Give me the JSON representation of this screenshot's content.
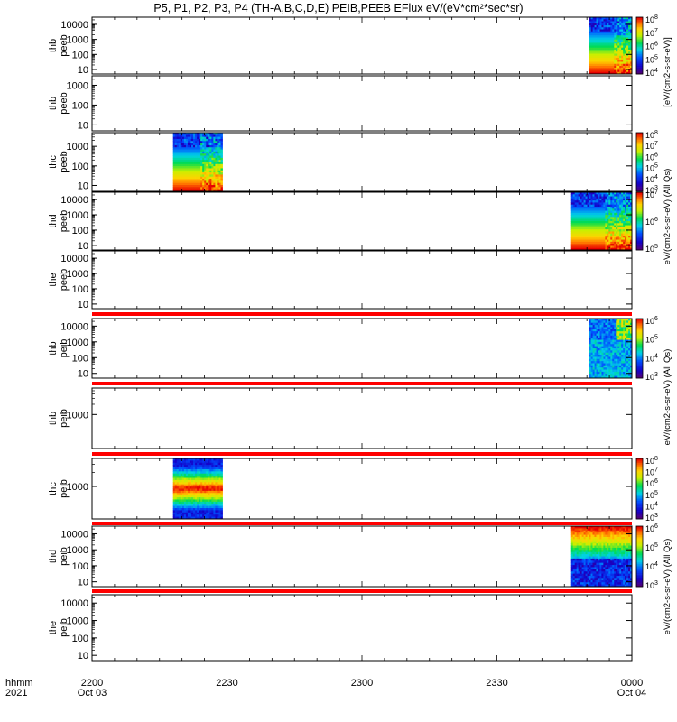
{
  "title": "P5, P1, P2, P3, P4 (TH-A,B,C,D,E) PEIB,PEEB EFlux eV/(eV*cm²*sec*sr)",
  "colors": {
    "band_red": "#ff0000",
    "axis": "#000000"
  },
  "chart_data": {
    "type": "heatmap",
    "x_axis": {
      "corner_label_1": "hhmm",
      "corner_label_2": "2021",
      "ticks": [
        {
          "label": "2200",
          "date": "Oct 03",
          "minutes": 0
        },
        {
          "label": "2230",
          "minutes": 30
        },
        {
          "label": "2300",
          "minutes": 60
        },
        {
          "label": "2330",
          "minutes": 90
        },
        {
          "label": "0000",
          "date": "Oct 04",
          "minutes": 120
        }
      ],
      "range": [
        0,
        120
      ],
      "minor_step_minutes": 5
    },
    "panels": [
      {
        "id": "thb_peeb",
        "labels": [
          "thb",
          "peeb"
        ],
        "ylim": [
          5,
          30000
        ],
        "yscale": "log",
        "yticks": [
          {
            "v": 10,
            "t": "10"
          },
          {
            "v": 100,
            "t": "100"
          },
          {
            "v": 1000,
            "t": "1000"
          },
          {
            "v": 10000,
            "t": "10000"
          }
        ],
        "data_blocks": [
          {
            "start": 110.5,
            "end": 120,
            "kind": "peeb_full"
          }
        ],
        "colorbar": {
          "exponents": [
            4,
            5,
            6,
            7,
            8
          ],
          "units": "eV/(cm2-s-sr-eV)"
        }
      },
      {
        "id": "thb_peeb_2",
        "labels": [
          "thb",
          "peeb"
        ],
        "ylim": [
          5,
          3000
        ],
        "yscale": "log",
        "yticks": [
          {
            "v": 10,
            "t": "10"
          },
          {
            "v": 100,
            "t": "100"
          },
          {
            "v": 1000,
            "t": "1000"
          }
        ],
        "data_blocks": []
      },
      {
        "id": "thc_peeb",
        "labels": [
          "thc",
          "peeb"
        ],
        "ylim": [
          5,
          5000
        ],
        "yscale": "log",
        "yticks": [
          {
            "v": 10,
            "t": "10"
          },
          {
            "v": 100,
            "t": "100"
          },
          {
            "v": 1000,
            "t": "1000"
          }
        ],
        "data_blocks": [
          {
            "start": 18,
            "end": 29,
            "kind": "peeb_full"
          }
        ],
        "colorbar": {
          "exponents": [
            3,
            4,
            5,
            6,
            7,
            8
          ],
          "units": "eV/(cm2-s-sr-eV)"
        }
      },
      {
        "id": "thd_peeb",
        "labels": [
          "thd",
          "peeb"
        ],
        "ylim": [
          5,
          30000
        ],
        "yscale": "log",
        "yticks": [
          {
            "v": 10,
            "t": "10"
          },
          {
            "v": 100,
            "t": "100"
          },
          {
            "v": 1000,
            "t": "1000"
          },
          {
            "v": 10000,
            "t": "10000"
          }
        ],
        "data_blocks": [
          {
            "start": 106.5,
            "end": 120,
            "kind": "peeb_full"
          }
        ],
        "colorbar": {
          "exponents": [
            5,
            6,
            7
          ],
          "units": "eV/(cm2-s-sr-eV)"
        }
      },
      {
        "id": "the_peeb",
        "labels": [
          "the",
          "peeb"
        ],
        "ylim": [
          5,
          30000
        ],
        "yscale": "log",
        "yticks": [
          {
            "v": 10,
            "t": "10"
          },
          {
            "v": 100,
            "t": "100"
          },
          {
            "v": 1000,
            "t": "1000"
          },
          {
            "v": 10000,
            "t": "10000"
          }
        ],
        "data_blocks": []
      },
      {
        "id": "thb_peib",
        "labels": [
          "thb",
          "peib"
        ],
        "ylim": [
          5,
          30000
        ],
        "yscale": "log",
        "yticks": [
          {
            "v": 10,
            "t": "10"
          },
          {
            "v": 100,
            "t": "100"
          },
          {
            "v": 1000,
            "t": "1000"
          },
          {
            "v": 10000,
            "t": "10000"
          }
        ],
        "data_blocks": [
          {
            "start": 110.5,
            "end": 120,
            "kind": "peib_blue"
          }
        ],
        "colorbar": {
          "exponents": [
            3,
            4,
            5,
            6
          ],
          "units": "eV/(cm2-s-sr-eV)"
        }
      },
      {
        "id": "thb_peib_2",
        "labels": [
          "thb",
          "peib"
        ],
        "ylim": [
          100,
          6000
        ],
        "yscale": "log",
        "yticks": [
          {
            "v": 1000,
            "t": "1000"
          }
        ],
        "data_blocks": []
      },
      {
        "id": "thc_peib",
        "labels": [
          "thc",
          "peib"
        ],
        "ylim": [
          200,
          4000
        ],
        "yscale": "log",
        "yticks": [
          {
            "v": 1000,
            "t": "1000"
          }
        ],
        "data_blocks": [
          {
            "start": 18,
            "end": 29,
            "kind": "peib_mid"
          }
        ],
        "colorbar": {
          "exponents": [
            3,
            4,
            5,
            6,
            7,
            8
          ],
          "units": "eV/(cm2-s-sr-eV)"
        }
      },
      {
        "id": "thd_peib",
        "labels": [
          "thd",
          "peib"
        ],
        "ylim": [
          5,
          30000
        ],
        "yscale": "log",
        "yticks": [
          {
            "v": 10,
            "t": "10"
          },
          {
            "v": 100,
            "t": "100"
          },
          {
            "v": 1000,
            "t": "1000"
          },
          {
            "v": 10000,
            "t": "10000"
          }
        ],
        "data_blocks": [
          {
            "start": 106.5,
            "end": 120,
            "kind": "peib_top"
          }
        ],
        "colorbar": {
          "exponents": [
            3,
            4,
            5,
            6
          ],
          "units": "eV/(cm2-s-sr-eV)"
        }
      },
      {
        "id": "the_peib",
        "labels": [
          "the",
          "peib"
        ],
        "ylim": [
          5,
          30000
        ],
        "yscale": "log",
        "yticks": [
          {
            "v": 10,
            "t": "10"
          },
          {
            "v": 100,
            "t": "100"
          },
          {
            "v": 1000,
            "t": "1000"
          },
          {
            "v": 10000,
            "t": "10000"
          }
        ],
        "data_blocks": []
      }
    ],
    "colorbar_unit_text": [
      "[eV/(cm2-s-sr-eV)]",
      "eV/(cm2-s-sr-eV) (All Qs)",
      "eV/(cm2-s-sr-eV) (All Qs)",
      "eV/(cm2-s-sr-eV) (All Qs)"
    ]
  }
}
